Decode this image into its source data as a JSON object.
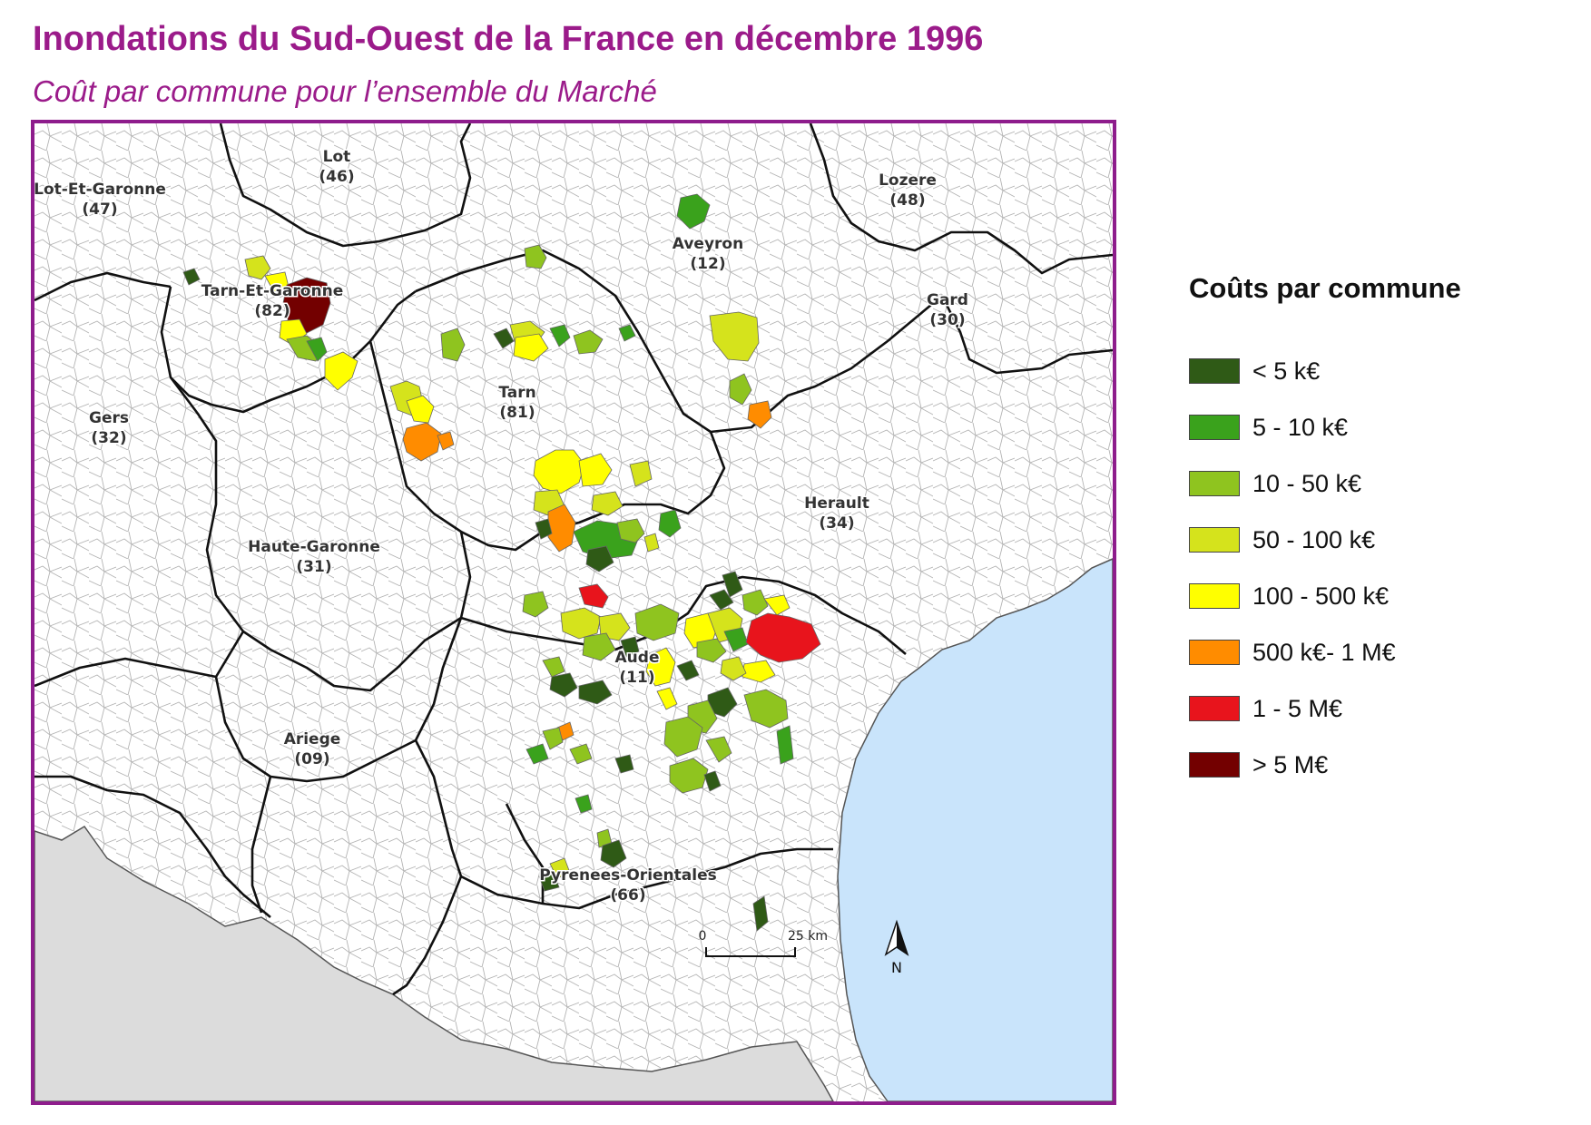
{
  "title": "Inondations du Sud-Ouest de la France en décembre 1996",
  "subtitle": "Coût par commune pour l’ensemble du Marché",
  "legend": {
    "title": "Coûts par commune",
    "items": [
      {
        "label": "< 5 k€",
        "color": "#2f5a16"
      },
      {
        "label": "5 - 10 k€",
        "color": "#3aa21c"
      },
      {
        "label": "10 - 50 k€",
        "color": "#8fc41f"
      },
      {
        "label": "50 - 100 k€",
        "color": "#d5e31c"
      },
      {
        "label": "100 - 500 k€",
        "color": "#ffff00"
      },
      {
        "label": "500 k€- 1 M€",
        "color": "#ff8c00"
      },
      {
        "label": "1 - 5 M€",
        "color": "#e8141c"
      },
      {
        "label": "> 5 M€",
        "color": "#730000"
      }
    ]
  },
  "departments": [
    {
      "name": "Lot",
      "code": "(46)"
    },
    {
      "name": "Lot-Et-Garonne",
      "code": "(47)"
    },
    {
      "name": "Lozere",
      "code": "(48)"
    },
    {
      "name": "Aveyron",
      "code": "(12)"
    },
    {
      "name": "Tarn-Et-Garonne",
      "code": "(82)"
    },
    {
      "name": "Gard",
      "code": "(30)"
    },
    {
      "name": "Tarn",
      "code": "(81)"
    },
    {
      "name": "Gers",
      "code": "(32)"
    },
    {
      "name": "Herault",
      "code": "(34)"
    },
    {
      "name": "Haute-Garonne",
      "code": "(31)"
    },
    {
      "name": "Aude",
      "code": "(11)"
    },
    {
      "name": "Ariege",
      "code": "(09)"
    },
    {
      "name": "Pyrenees-Orientales",
      "code": "(66)"
    }
  ],
  "scale_bar": {
    "start": "0",
    "end": "25 km"
  },
  "north_arrow": "N",
  "colors": {
    "frame": "#8e1d8c",
    "title": "#9b1b8a",
    "sea": "#c9e4fb",
    "foreign": "#dcdcdc"
  }
}
